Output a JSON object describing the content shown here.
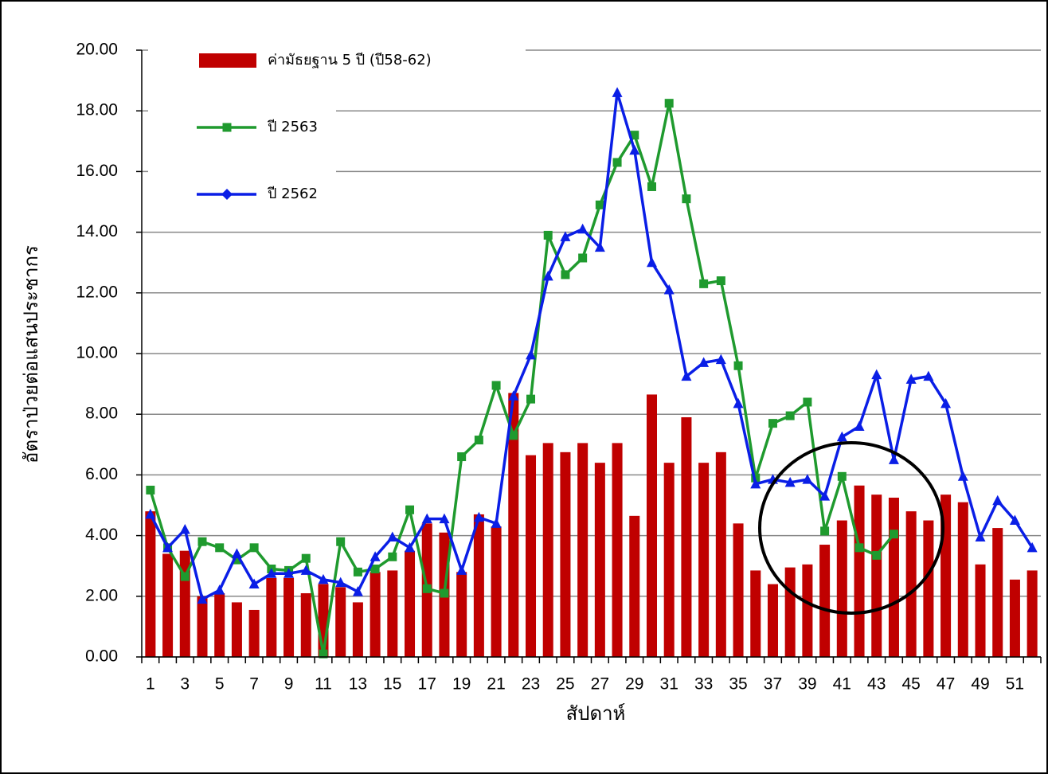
{
  "chart_data": {
    "type": "bar",
    "x_label": "สัปดาห์",
    "y_label": "อัตราป่วยต่อแสนประชากร",
    "categories": [
      1,
      null,
      3,
      null,
      5,
      null,
      7,
      null,
      9,
      null,
      11,
      null,
      13,
      null,
      15,
      null,
      17,
      null,
      19,
      null,
      21,
      null,
      23,
      null,
      25,
      null,
      27,
      null,
      29,
      null,
      31,
      null,
      33,
      null,
      35,
      null,
      37,
      null,
      39,
      null,
      41,
      null,
      43,
      null,
      45,
      null,
      47,
      null,
      49,
      null,
      51,
      null
    ],
    "ylim": [
      0,
      20
    ],
    "yticks": [
      {
        "value": 0,
        "label": "0.00"
      },
      {
        "value": 2,
        "label": "2.00"
      },
      {
        "value": 4,
        "label": "4.00"
      },
      {
        "value": 6,
        "label": "6.00"
      },
      {
        "value": 8,
        "label": "8.00"
      },
      {
        "value": 10,
        "label": "10.00"
      },
      {
        "value": 12,
        "label": "12.00"
      },
      {
        "value": 14,
        "label": "14.00"
      },
      {
        "value": 16,
        "label": "16.00"
      },
      {
        "value": 18,
        "label": "18.00"
      },
      {
        "value": 20,
        "label": "20.00"
      }
    ],
    "grid": true,
    "legend": "upper left",
    "series": [
      {
        "name": "ค่ามัธยฐาน 5 ปี (ปี58-62)",
        "type": "bar",
        "color": "#c00000",
        "values": [
          4.8,
          3.4,
          3.5,
          2.0,
          2.1,
          1.8,
          1.55,
          2.6,
          2.6,
          2.1,
          2.4,
          2.3,
          1.8,
          2.8,
          2.85,
          3.5,
          4.4,
          4.1,
          2.8,
          4.7,
          4.3,
          8.7,
          6.65,
          7.05,
          6.75,
          7.05,
          6.4,
          7.05,
          4.65,
          8.65,
          6.4,
          7.9,
          6.4,
          6.75,
          4.4,
          2.85,
          2.4,
          2.95,
          3.05,
          3.7,
          4.5,
          5.65,
          5.35,
          5.25,
          4.8,
          4.5,
          5.35,
          5.1,
          3.05,
          4.25,
          2.55,
          2.85
        ]
      },
      {
        "name": "ปี 2563",
        "type": "line",
        "marker": "square",
        "color": "#1f9a2e",
        "values": [
          5.5,
          3.6,
          2.65,
          3.8,
          3.6,
          3.2,
          3.6,
          2.9,
          2.85,
          3.25,
          0.1,
          3.8,
          2.8,
          2.9,
          3.3,
          4.85,
          2.25,
          2.1,
          6.6,
          7.15,
          8.95,
          7.3,
          8.5,
          13.9,
          12.6,
          13.15,
          14.9,
          16.3,
          17.2,
          15.5,
          18.25,
          15.1,
          12.3,
          12.4,
          9.6,
          5.9,
          7.7,
          7.95,
          8.4,
          4.15,
          5.95,
          3.6,
          3.35,
          4.05,
          null,
          null,
          null,
          null,
          null,
          null,
          null,
          null
        ]
      },
      {
        "name": "ปี 2562",
        "type": "line",
        "marker": "triangle",
        "color": "#0a1ee6",
        "values": [
          4.7,
          3.6,
          4.2,
          1.9,
          2.2,
          3.4,
          2.4,
          2.75,
          2.75,
          2.85,
          2.55,
          2.45,
          2.15,
          3.3,
          3.95,
          3.6,
          4.55,
          4.55,
          2.85,
          4.6,
          4.4,
          8.6,
          9.95,
          12.55,
          13.85,
          14.1,
          13.5,
          18.6,
          16.7,
          13.0,
          12.1,
          9.25,
          9.7,
          9.8,
          8.35,
          5.7,
          5.85,
          5.75,
          5.85,
          5.3,
          7.25,
          7.6,
          9.3,
          6.5,
          9.15,
          9.25,
          8.35,
          5.95,
          3.95,
          5.15,
          4.5,
          3.6
        ]
      }
    ]
  }
}
